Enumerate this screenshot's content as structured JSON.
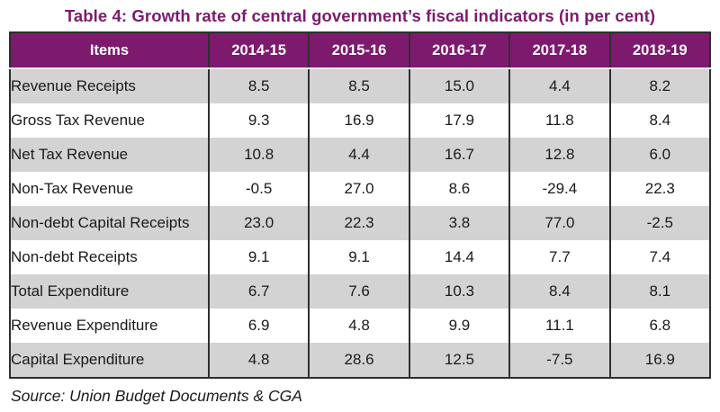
{
  "title": "Table 4: Growth rate of central government’s fiscal indicators (in per cent)",
  "source_note": "Source: Union Budget Documents & CGA",
  "colors": {
    "title_text": "#7d1a6e",
    "header_bg": "#7d1a6e",
    "header_text": "#ffffff",
    "row_alt_bg": "#d3d3d3",
    "row_bg": "#ffffff",
    "border": "#2f2f2f",
    "cell_text": "#1a1a1a"
  },
  "chart_data": {
    "type": "table",
    "title": "Table 4: Growth rate of central government’s fiscal indicators (in per cent)",
    "unit": "per cent",
    "columns": [
      "Items",
      "2014-15",
      "2015-16",
      "2016-17",
      "2017-18",
      "2018-19"
    ],
    "rows": [
      {
        "label": "Revenue Receipts",
        "values": [
          "8.5",
          "8.5",
          "15.0",
          "4.4",
          "8.2"
        ]
      },
      {
        "label": "Gross Tax Revenue",
        "values": [
          "9.3",
          "16.9",
          "17.9",
          "11.8",
          "8.4"
        ]
      },
      {
        "label": "Net Tax Revenue",
        "values": [
          "10.8",
          "4.4",
          "16.7",
          "12.8",
          "6.0"
        ]
      },
      {
        "label": "Non-Tax Revenue",
        "values": [
          "-0.5",
          "27.0",
          "8.6",
          "-29.4",
          "22.3"
        ]
      },
      {
        "label": "Non-debt Capital Receipts",
        "values": [
          "23.0",
          "22.3",
          "3.8",
          "77.0",
          "-2.5"
        ]
      },
      {
        "label": "Non-debt Receipts",
        "values": [
          "9.1",
          "9.1",
          "14.4",
          "7.7",
          "7.4"
        ]
      },
      {
        "label": "Total Expenditure",
        "values": [
          "6.7",
          "7.6",
          "10.3",
          "8.4",
          "8.1"
        ]
      },
      {
        "label": "Revenue Expenditure",
        "values": [
          "6.9",
          "4.8",
          "9.9",
          "11.1",
          "6.8"
        ]
      },
      {
        "label": "Capital Expenditure",
        "values": [
          "4.8",
          "28.6",
          "12.5",
          "-7.5",
          "16.9"
        ]
      }
    ],
    "source_note": "Source: Union Budget Documents & CGA",
    "layout": {
      "header_row": true,
      "alternating_row_shading": "odd rows gray, even rows white",
      "first_column_align": "left",
      "value_columns_align": "center"
    }
  }
}
